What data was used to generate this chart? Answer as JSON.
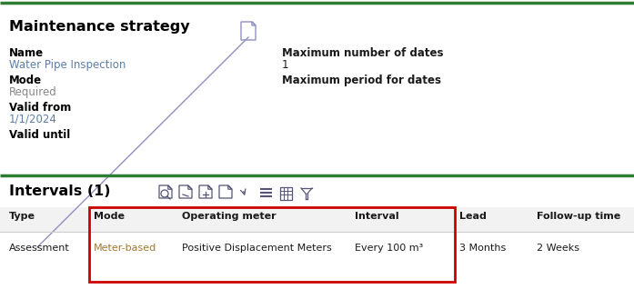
{
  "bg_color": "#ffffff",
  "top_line_color": "#2d7d32",
  "section_line_color": "#2d7d32",
  "title_text": "Maintenance strategy",
  "title_fontsize": 11.5,
  "title_color": "#000000",
  "name_label": "Name",
  "name_value": "Water Pipe Inspection",
  "name_value_color": "#5b7fa6",
  "mode_label": "Mode",
  "mode_value": "Required",
  "mode_value_color": "#888888",
  "valid_from_label": "Valid from",
  "valid_from_value": "1/1/2024",
  "valid_from_value_color": "#5b7fa6",
  "valid_until_label": "Valid until",
  "max_dates_label": "Maximum number of dates",
  "max_dates_value": "1",
  "max_period_label": "Maximum period for dates",
  "label_fontsize": 8.5,
  "value_fontsize": 8.5,
  "right_col_label_color": "#1a1a1a",
  "right_col_value_color": "#1a1a1a",
  "section2_title": "Intervals (1)",
  "section2_fontsize": 11.5,
  "table_headers": [
    "Type",
    "Mode",
    "Operating meter",
    "Interval",
    "Lead",
    "Follow-up time"
  ],
  "table_row": [
    "Assessment",
    "Meter-based",
    "Positive Displacement Meters",
    "Every 100 m³",
    "3 Months",
    "2 Weeks"
  ],
  "table_header_fontsize": 8.0,
  "table_row_fontsize": 8.0,
  "meter_based_color": "#a07830",
  "table_text_color": "#1a1a1a",
  "red_box_color": "#cc0000",
  "grid_line_color": "#cccccc",
  "header_bg_color": "#f0f0f0"
}
